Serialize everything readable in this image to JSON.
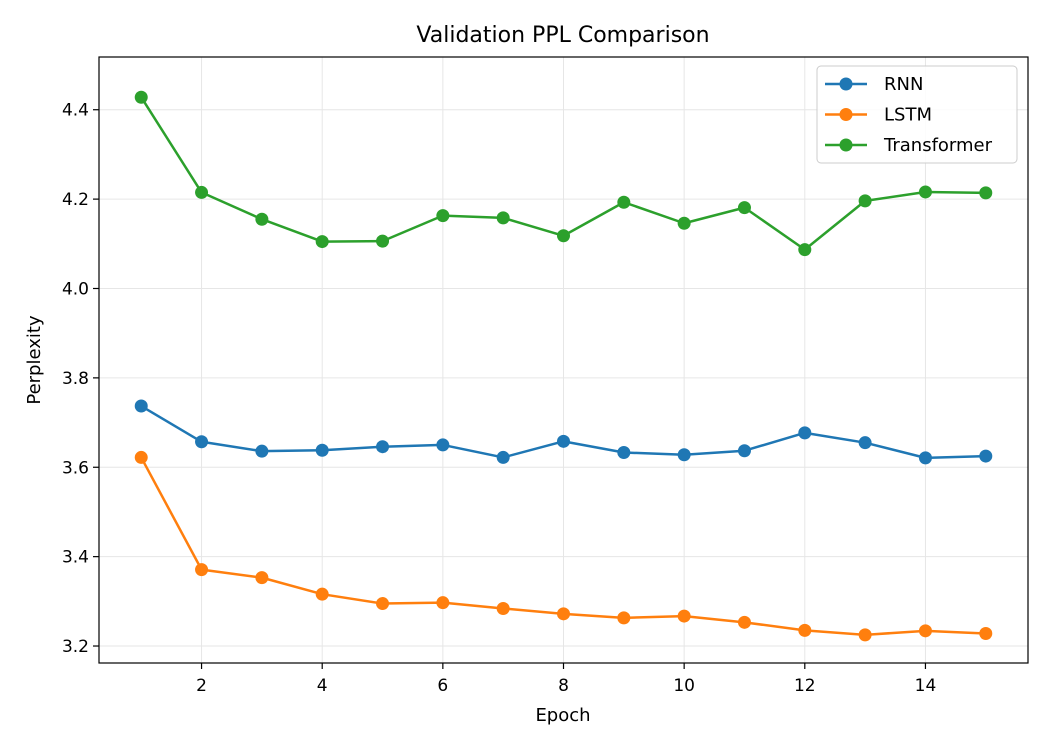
{
  "chart_data": {
    "type": "line",
    "title": "Validation PPL Comparison",
    "xlabel": "Epoch",
    "ylabel": "Perplexity",
    "x": [
      1,
      2,
      3,
      4,
      5,
      6,
      7,
      8,
      9,
      10,
      11,
      12,
      13,
      14,
      15
    ],
    "xlim": [
      0.3,
      15.7
    ],
    "ylim": [
      3.162,
      4.518
    ],
    "xticks": [
      2,
      4,
      6,
      8,
      10,
      12,
      14
    ],
    "yticks": [
      3.2,
      3.4,
      3.6,
      3.8,
      4.0,
      4.2,
      4.4
    ],
    "ytick_labels": [
      "3.2",
      "3.4",
      "3.6",
      "3.8",
      "4.0",
      "4.2",
      "4.4"
    ],
    "grid": true,
    "legend_position": "top-right",
    "series": [
      {
        "name": "RNN",
        "color": "#1f77b4",
        "values": [
          3.737,
          3.657,
          3.636,
          3.638,
          3.646,
          3.65,
          3.622,
          3.658,
          3.633,
          3.628,
          3.637,
          3.677,
          3.655,
          3.621,
          3.625
        ]
      },
      {
        "name": "LSTM",
        "color": "#ff7f0e",
        "values": [
          3.622,
          3.371,
          3.353,
          3.316,
          3.295,
          3.297,
          3.284,
          3.272,
          3.263,
          3.267,
          3.253,
          3.235,
          3.225,
          3.234,
          3.228
        ]
      },
      {
        "name": "Transformer",
        "color": "#2ca02c",
        "values": [
          4.428,
          4.215,
          4.155,
          4.105,
          4.106,
          4.163,
          4.158,
          4.118,
          4.193,
          4.146,
          4.181,
          4.087,
          4.196,
          4.216,
          4.214
        ]
      }
    ]
  }
}
